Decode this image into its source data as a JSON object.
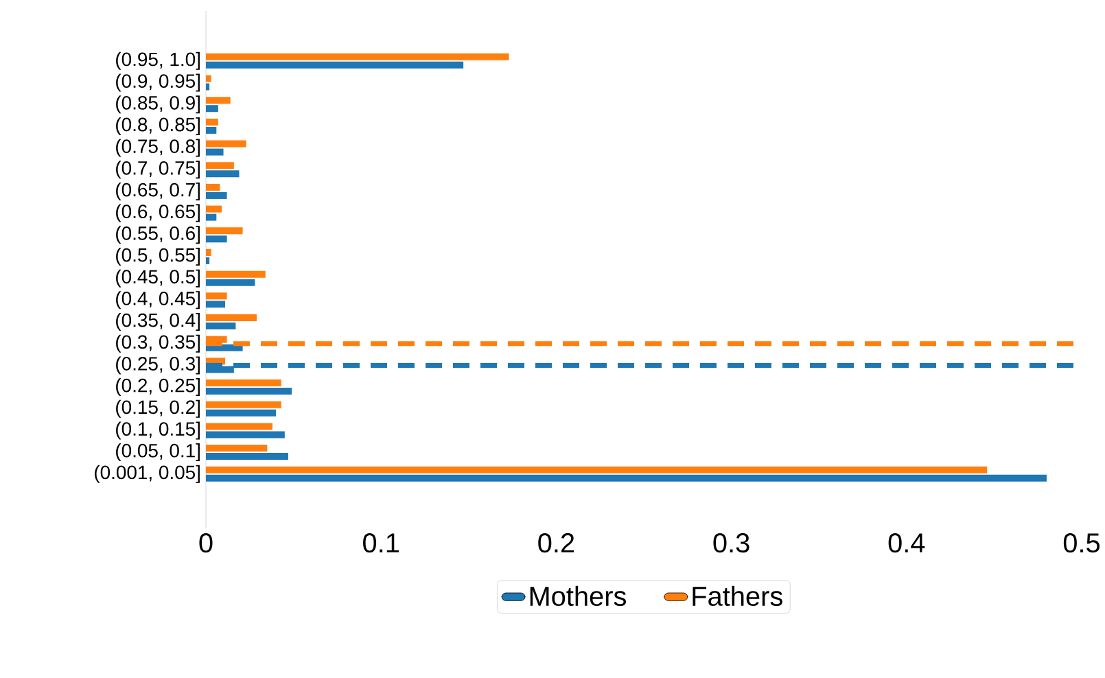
{
  "chart_data": {
    "type": "bar",
    "orientation": "horizontal",
    "categories": [
      "(0.95, 1.0]",
      "(0.9, 0.95]",
      "(0.85, 0.9]",
      "(0.8, 0.85]",
      "(0.75, 0.8]",
      "(0.7, 0.75]",
      "(0.65, 0.7]",
      "(0.6, 0.65]",
      "(0.55, 0.6]",
      "(0.5, 0.55]",
      "(0.45, 0.5]",
      "(0.4, 0.45]",
      "(0.35, 0.4]",
      "(0.3, 0.35]",
      "(0.25, 0.3]",
      "(0.2, 0.25]",
      "(0.15, 0.2]",
      "(0.1, 0.15]",
      "(0.05, 0.1]",
      "(0.001, 0.05]"
    ],
    "series": [
      {
        "name": "Mothers",
        "color": "#1f77b4",
        "values": [
          0.147,
          0.002,
          0.007,
          0.006,
          0.01,
          0.019,
          0.012,
          0.006,
          0.012,
          0.002,
          0.028,
          0.011,
          0.017,
          0.021,
          0.016,
          0.049,
          0.04,
          0.045,
          0.047,
          0.48
        ]
      },
      {
        "name": "Fathers",
        "color": "#ff7f0e",
        "values": [
          0.173,
          0.003,
          0.014,
          0.007,
          0.023,
          0.016,
          0.008,
          0.009,
          0.021,
          0.003,
          0.034,
          0.012,
          0.029,
          0.012,
          0.011,
          0.043,
          0.043,
          0.038,
          0.035,
          0.446
        ]
      }
    ],
    "xlim": [
      0,
      0.5
    ],
    "xticks": [
      0,
      0.1,
      0.2,
      0.3,
      0.4,
      0.5
    ],
    "ref_lines": [
      {
        "axis": "y",
        "value": "(0.25, 0.3]",
        "color": "#1f77b4",
        "line_style": "dashed"
      },
      {
        "axis": "y",
        "value": "(0.3, 0.35]",
        "color": "#ff7f0e",
        "line_style": "dashed"
      }
    ],
    "grid": false,
    "legend": "bottom"
  }
}
